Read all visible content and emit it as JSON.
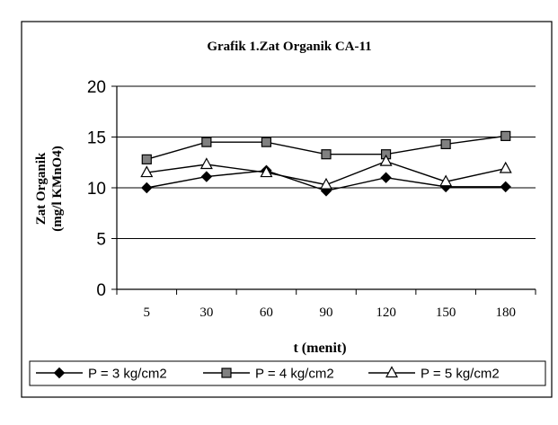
{
  "chart_data": {
    "type": "line",
    "title": "Grafik 1.Zat Organik CA-11",
    "xlabel": "t (menit)",
    "ylabel_line1": "Zat Organik",
    "ylabel_line2": "(mg/l KMnO4)",
    "categories": [
      "5",
      "30",
      "60",
      "90",
      "120",
      "150",
      "180"
    ],
    "y_ticks": [
      "0",
      "5",
      "10",
      "15",
      "20"
    ],
    "ylim": [
      0,
      20
    ],
    "grid": true,
    "legend_position": "bottom",
    "series": [
      {
        "name": "P = 3 kg/cm2",
        "marker": "diamond",
        "color": "#000000",
        "values": [
          10.0,
          11.1,
          11.7,
          9.7,
          11.0,
          10.1,
          10.1
        ]
      },
      {
        "name": "P = 4 kg/cm2",
        "marker": "square",
        "color": "#000000",
        "values": [
          12.8,
          14.5,
          14.5,
          13.3,
          13.3,
          14.3,
          15.1
        ]
      },
      {
        "name": "P = 5 kg/cm2",
        "marker": "triangle",
        "color": "#000000",
        "values": [
          11.5,
          12.3,
          11.5,
          10.3,
          12.6,
          10.6,
          11.9
        ]
      }
    ]
  }
}
